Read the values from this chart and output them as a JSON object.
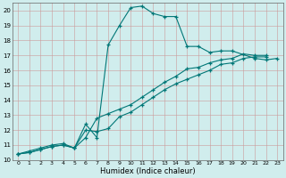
{
  "xlabel": "Humidex (Indice chaleur)",
  "bg_color": "#d0eded",
  "grid_color": "#cc9999",
  "line_color": "#007777",
  "xlim": [
    -0.5,
    23.5
  ],
  "ylim": [
    10,
    20.5
  ],
  "yticks": [
    10,
    11,
    12,
    13,
    14,
    15,
    16,
    17,
    18,
    19,
    20
  ],
  "xticks": [
    0,
    1,
    2,
    3,
    4,
    5,
    6,
    7,
    8,
    9,
    10,
    11,
    12,
    13,
    14,
    15,
    16,
    17,
    18,
    19,
    20,
    21,
    22,
    23
  ],
  "line1_x": [
    0,
    1,
    2,
    3,
    4,
    5,
    6,
    7,
    8,
    9,
    10,
    11,
    12,
    13,
    14,
    15,
    16,
    17,
    18,
    19,
    21,
    22,
    23
  ],
  "line1_y": [
    10.4,
    10.6,
    10.8,
    11.0,
    11.1,
    10.8,
    12.4,
    11.5,
    17.7,
    19.0,
    20.2,
    20.3,
    19.8,
    19.6,
    19.6,
    17.6,
    17.6,
    17.2,
    17.3,
    17.3,
    16.8,
    16.7,
    16.8
  ],
  "line2_x": [
    0,
    1,
    2,
    3,
    4,
    5,
    6,
    7,
    8,
    9,
    10,
    11,
    12,
    13,
    14,
    15,
    16,
    17,
    18,
    19,
    20,
    21,
    22
  ],
  "line2_y": [
    10.4,
    10.5,
    10.7,
    10.9,
    11.0,
    10.8,
    11.5,
    12.8,
    13.1,
    13.4,
    13.7,
    14.2,
    14.7,
    15.2,
    15.6,
    16.1,
    16.2,
    16.5,
    16.7,
    16.8,
    17.1,
    17.0,
    17.0
  ],
  "line3_x": [
    0,
    1,
    2,
    3,
    4,
    5,
    6,
    7,
    8,
    9,
    10,
    11,
    12,
    13,
    14,
    15,
    16,
    17,
    18,
    19,
    20,
    21,
    22
  ],
  "line3_y": [
    10.4,
    10.5,
    10.7,
    10.9,
    11.0,
    10.8,
    12.0,
    11.9,
    12.1,
    12.9,
    13.2,
    13.7,
    14.2,
    14.7,
    15.1,
    15.4,
    15.7,
    16.0,
    16.4,
    16.5,
    16.8,
    16.9,
    16.9
  ]
}
